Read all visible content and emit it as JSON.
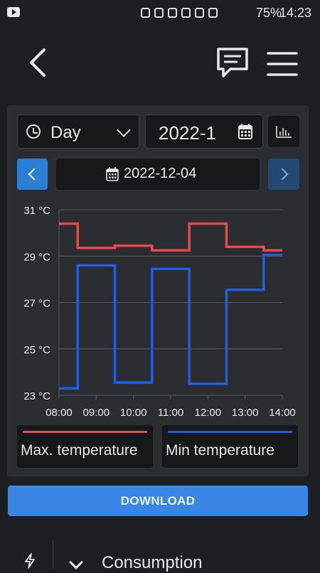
{
  "status_bar": {
    "battery": "75%",
    "time": "14:23"
  },
  "toolbar": {
    "back_icon": "chevron-left-icon",
    "chat_icon": "chat-icon",
    "menu_icon": "hamburger-menu-icon"
  },
  "controls": {
    "period_select": "Day",
    "date_input_value": "2022-1",
    "chart_toggle_icon": "bar-chart-icon",
    "current_date": "2022-12-04"
  },
  "chart_data": {
    "type": "line",
    "step": true,
    "x_ticks": [
      "08:00",
      "09:00",
      "10:00",
      "11:00",
      "12:00",
      "13:00",
      "14:00"
    ],
    "y_ticks": [
      "23 °C",
      "25 °C",
      "27 °C",
      "29 °C",
      "31 °C"
    ],
    "ylim": [
      23,
      31
    ],
    "xlim": [
      8,
      14
    ],
    "grid": true,
    "series": [
      {
        "name": "Max. temperature",
        "color": "#e8494f",
        "points": [
          [
            8,
            30.4
          ],
          [
            8.5,
            30.4
          ],
          [
            8.5,
            29.35
          ],
          [
            9.5,
            29.35
          ],
          [
            9.5,
            29.45
          ],
          [
            10.5,
            29.45
          ],
          [
            10.5,
            29.25
          ],
          [
            11.5,
            29.25
          ],
          [
            11.5,
            30.4
          ],
          [
            12.5,
            30.4
          ],
          [
            12.5,
            29.4
          ],
          [
            13.5,
            29.4
          ],
          [
            13.5,
            29.25
          ],
          [
            14,
            29.25
          ]
        ]
      },
      {
        "name": "Min temperature",
        "color": "#1f5fe6",
        "points": [
          [
            8,
            23.3
          ],
          [
            8.5,
            23.3
          ],
          [
            8.5,
            28.6
          ],
          [
            9.5,
            28.6
          ],
          [
            9.5,
            23.55
          ],
          [
            10.5,
            23.55
          ],
          [
            10.5,
            28.45
          ],
          [
            11.5,
            28.45
          ],
          [
            11.5,
            23.5
          ],
          [
            12.5,
            23.5
          ],
          [
            12.5,
            27.55
          ],
          [
            13.5,
            27.55
          ],
          [
            13.5,
            29.05
          ],
          [
            14,
            29.05
          ]
        ]
      }
    ]
  },
  "legend": [
    {
      "label": "Max. temperature",
      "color": "#e8494f"
    },
    {
      "label": "Min temperature",
      "color": "#1f5fe6"
    }
  ],
  "download": {
    "label": "DOWNLOAD"
  },
  "section": {
    "title": "Consumption",
    "icon": "lightning-bolt-icon"
  }
}
